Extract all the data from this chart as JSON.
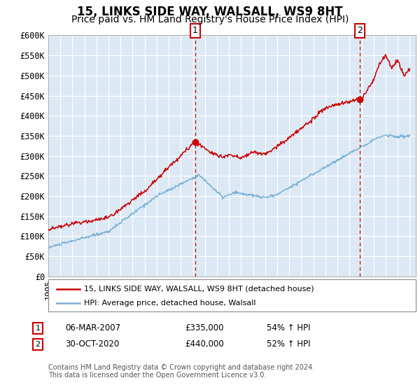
{
  "title": "15, LINKS SIDE WAY, WALSALL, WS9 8HT",
  "subtitle": "Price paid vs. HM Land Registry's House Price Index (HPI)",
  "ylim": [
    0,
    600000
  ],
  "yticks": [
    0,
    50000,
    100000,
    150000,
    200000,
    250000,
    300000,
    350000,
    400000,
    450000,
    500000,
    550000,
    600000
  ],
  "ytick_labels": [
    "£0",
    "£50K",
    "£100K",
    "£150K",
    "£200K",
    "£250K",
    "£300K",
    "£350K",
    "£400K",
    "£450K",
    "£500K",
    "£550K",
    "£600K"
  ],
  "xmin": 1995.0,
  "xmax": 2025.5,
  "plot_bg_color": "#dce9f5",
  "title_fontsize": 12,
  "subtitle_fontsize": 10,
  "tick_fontsize": 8.5,
  "legend_label_property": "15, LINKS SIDE WAY, WALSALL, WS9 8HT (detached house)",
  "legend_label_hpi": "HPI: Average price, detached house, Walsall",
  "red_color": "#cc0000",
  "blue_color": "#7ab0d4",
  "sale1_x": 2007.18,
  "sale1_y": 335000,
  "sale2_x": 2020.83,
  "sale2_y": 440000,
  "annotation1": "1",
  "annotation2": "2",
  "table_data": [
    [
      "1",
      "06-MAR-2007",
      "£335,000",
      "54% ↑ HPI"
    ],
    [
      "2",
      "30-OCT-2020",
      "£440,000",
      "52% ↑ HPI"
    ]
  ],
  "footer": "Contains HM Land Registry data © Crown copyright and database right 2024.\nThis data is licensed under the Open Government Licence v3.0."
}
